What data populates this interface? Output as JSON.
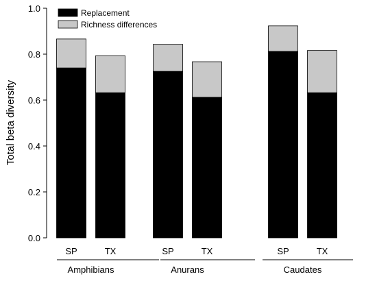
{
  "chart_data": {
    "type": "bar",
    "stacked": true,
    "title": "",
    "xlabel": "",
    "ylabel": "Total beta diversity",
    "ylim": [
      0,
      1.0
    ],
    "yticks": [
      "0.0",
      "0.2",
      "0.4",
      "0.6",
      "0.8",
      "1.0"
    ],
    "grid": false,
    "legend_position": "top-left",
    "categories": [
      "SP",
      "TX",
      "SP",
      "TX",
      "SP",
      "TX"
    ],
    "groups": [
      {
        "label": "Amphibians",
        "categories": [
          "SP",
          "TX"
        ]
      },
      {
        "label": "Anurans",
        "categories": [
          "SP",
          "TX"
        ]
      },
      {
        "label": "Caudates",
        "categories": [
          "SP",
          "TX"
        ]
      }
    ],
    "series": [
      {
        "name": "Replacement",
        "color": "#000000",
        "values": [
          0.74,
          0.632,
          0.725,
          0.612,
          0.812,
          0.632
        ]
      },
      {
        "name": "Richness differences",
        "color": "#c8c8c8",
        "values": [
          0.126,
          0.161,
          0.118,
          0.155,
          0.111,
          0.184
        ]
      }
    ]
  }
}
